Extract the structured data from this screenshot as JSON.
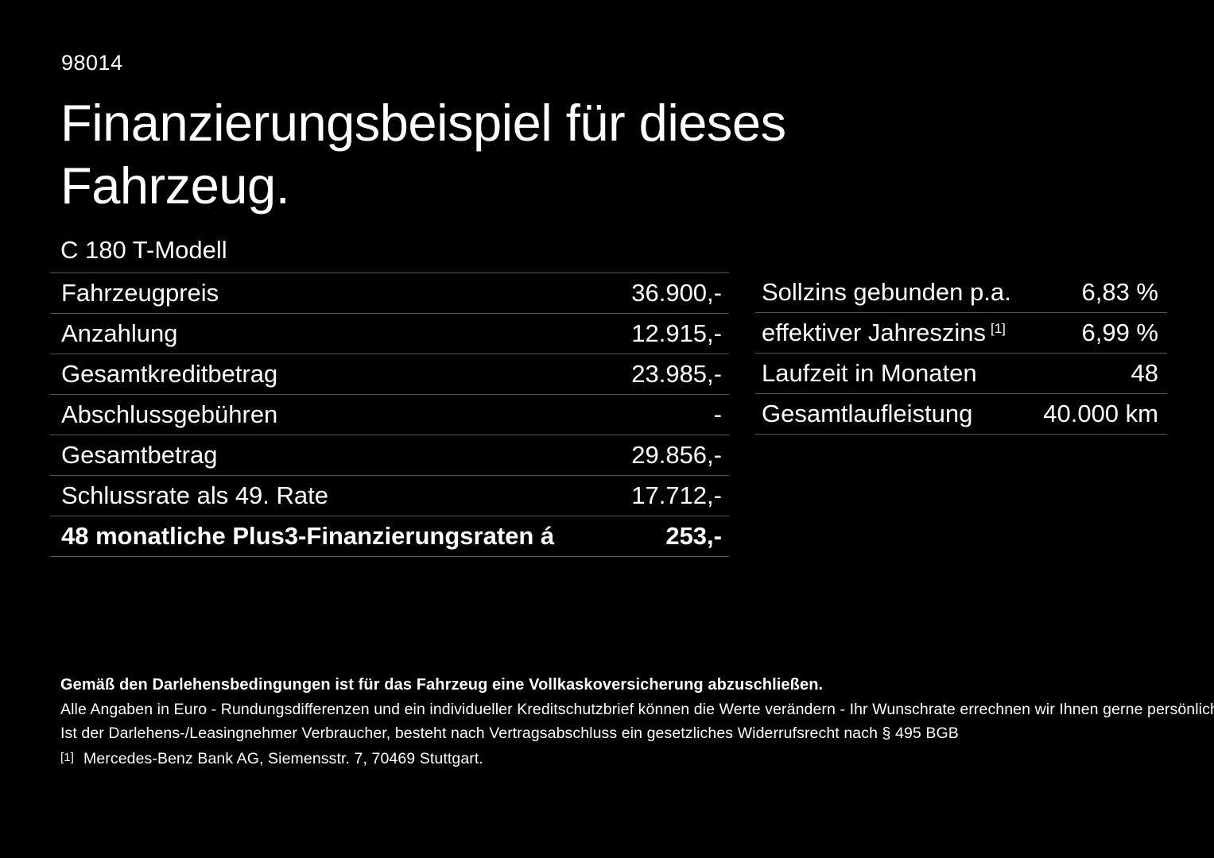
{
  "header": {
    "offer_id": "98014",
    "title_line1": "Finanzierungsbeispiel für dieses",
    "title_line2": "Fahrzeug.",
    "model": "C 180 T-Modell"
  },
  "financing": {
    "rows": [
      {
        "label": "Fahrzeugpreis",
        "value": "36.900,-"
      },
      {
        "label": "Anzahlung",
        "value": "12.915,-"
      },
      {
        "label": "Gesamtkreditbetrag",
        "value": "23.985,-"
      },
      {
        "label": "Abschlussgebühren",
        "value": "-"
      },
      {
        "label": "Gesamtbetrag",
        "value": "29.856,-"
      },
      {
        "label": "Schlussrate als 49. Rate",
        "value": "17.712,-"
      },
      {
        "label": "48 monatliche Plus3-Finanzierungsraten á",
        "value": "253,-"
      }
    ]
  },
  "conditions": {
    "rows": [
      {
        "label": "Sollzins gebunden p.a.",
        "value": "6,83 %"
      },
      {
        "label": "effektiver Jahreszins",
        "label_sup": "[1]",
        "value": "6,99 %"
      },
      {
        "label": "Laufzeit in Monaten",
        "value": "48"
      },
      {
        "label": "Gesamtlaufleistung",
        "value": "40.000 km"
      }
    ]
  },
  "footer": {
    "bold_note": "Gemäß den Darlehensbedingungen ist für das Fahrzeug eine Vollkaskoversicherung abzuschließen.",
    "note1": "Alle Angaben in Euro - Rundungsdifferenzen und ein individueller Kreditschutzbrief können die Werte verändern - Ihr Wunschrate errechnen wir Ihnen gerne persönlich",
    "note2": "Ist der Darlehens-/Leasingnehmer Verbraucher, besteht nach Vertragsabschluss ein gesetzliches Widerrufsrecht nach § 495 BGB",
    "footnote_marker": "[1]",
    "footnote_text": "Mercedes-Benz Bank AG, Siemensstr. 7, 70469 Stuttgart."
  },
  "colors": {
    "background": "#000000",
    "text": "#ffffff",
    "divider": "#555555"
  }
}
